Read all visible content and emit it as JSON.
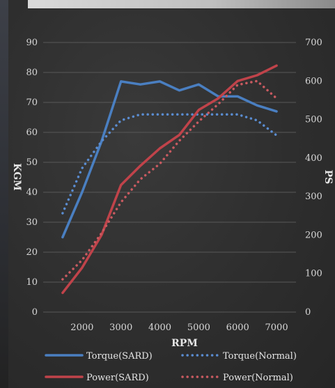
{
  "chart_data": {
    "type": "line",
    "title": "",
    "xlabel": "RPM",
    "ylabel_left": "KGM",
    "ylabel_right": "PS",
    "x_ticks": [
      2000,
      3000,
      4000,
      5000,
      6000,
      7000
    ],
    "y_left_ticks": [
      0,
      10,
      20,
      30,
      40,
      50,
      60,
      70,
      80,
      90
    ],
    "y_right_ticks": [
      0,
      100,
      200,
      300,
      400,
      500,
      600,
      700
    ],
    "y_left_lim": [
      0,
      90
    ],
    "y_right_lim": [
      0,
      700
    ],
    "x_lim": [
      1000,
      7500
    ],
    "grid": "horizontal",
    "legend_position": "bottom",
    "series": [
      {
        "name": "Torque(SARD)",
        "axis": "left",
        "style": "solid",
        "color": "#4a7fc1",
        "x": [
          1500,
          2000,
          2500,
          3000,
          3500,
          4000,
          4500,
          5000,
          5500,
          6000,
          6500,
          7000
        ],
        "y": [
          25,
          40,
          57,
          77,
          76,
          77,
          74,
          76,
          72,
          72,
          69,
          67
        ]
      },
      {
        "name": "Torque(Normal)",
        "axis": "left",
        "style": "dotted",
        "color": "#5a8cd0",
        "x": [
          1500,
          2000,
          2500,
          3000,
          3500,
          4000,
          4500,
          5000,
          5500,
          6000,
          6500,
          7000
        ],
        "y": [
          33,
          48,
          57,
          64,
          66,
          66,
          66,
          66,
          66,
          66,
          64,
          59
        ]
      },
      {
        "name": "Power(SARD)",
        "axis": "right",
        "style": "solid",
        "color": "#c0434a",
        "x": [
          1500,
          2000,
          2500,
          3000,
          3500,
          4000,
          4500,
          5000,
          5500,
          6000,
          6500,
          7000
        ],
        "y": [
          50,
          115,
          200,
          330,
          380,
          425,
          460,
          525,
          555,
          600,
          615,
          640
        ]
      },
      {
        "name": "Power(Normal)",
        "axis": "right",
        "style": "dotted",
        "color": "#c85a60",
        "x": [
          1500,
          2000,
          2500,
          3000,
          3500,
          4000,
          4500,
          5000,
          5500,
          6000,
          6500,
          7000
        ],
        "y": [
          85,
          135,
          205,
          285,
          345,
          385,
          445,
          495,
          540,
          590,
          600,
          555
        ]
      }
    ]
  }
}
